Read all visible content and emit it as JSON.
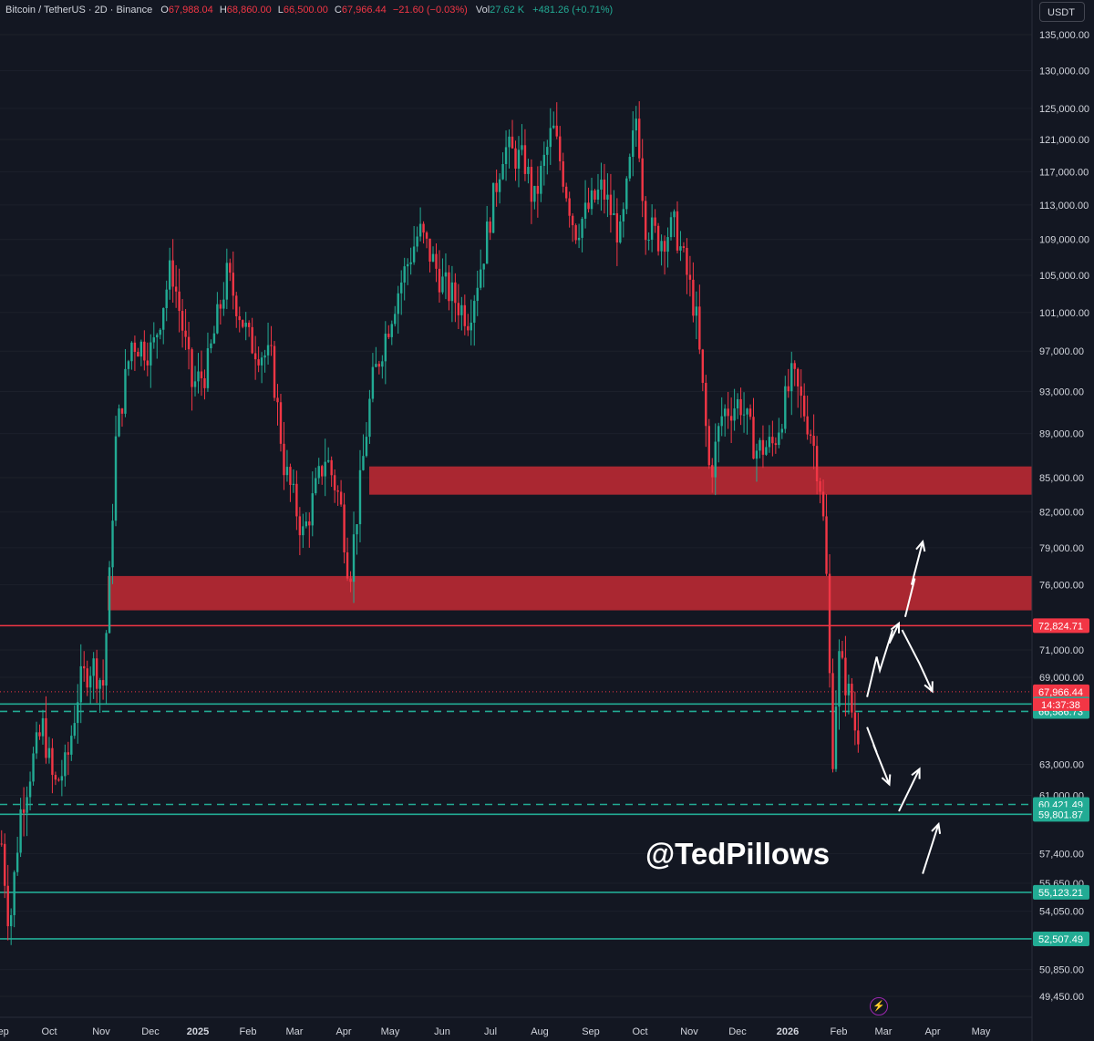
{
  "header": {
    "symbol": "Bitcoin / TetherUS · 2D · Binance",
    "o_label": "O",
    "o_value": "67,988.04",
    "h_label": "H",
    "h_value": "68,860.00",
    "l_label": "L",
    "l_value": "66,500.00",
    "c_label": "C",
    "c_value": "67,966.44",
    "change": "−21.60 (−0.03%)",
    "vol_label": "Vol",
    "vol_value": "27.62 K",
    "vol_change": "+481.26 (+0.71%)"
  },
  "currency_button": "USDT",
  "watermark": "@TedPillows",
  "bolt_icon": "lightning-icon",
  "colors": {
    "up": "#22ab94",
    "down": "#f23645",
    "zone": "#b22833",
    "resistance": "#f23645",
    "support": "#22ab94",
    "background": "#131722"
  },
  "chart_data": {
    "type": "candlestick",
    "title": "Bitcoin / TetherUS",
    "interval": "2D",
    "y_scale": "log",
    "ylim": [
      48500,
      137000
    ],
    "x_ticks": [
      "Sep",
      "Oct",
      "Nov",
      "Dec",
      "2025",
      "Feb",
      "Mar",
      "Apr",
      "May",
      "Jun",
      "Jul",
      "Aug",
      "Sep",
      "Oct",
      "Nov",
      "Dec",
      "2026",
      "Feb",
      "Mar",
      "Apr",
      "May"
    ],
    "y_ticks": [
      "135,000.00",
      "130,000.00",
      "125,000.00",
      "121,000.00",
      "117,000.00",
      "113,000.00",
      "109,000.00",
      "105,000.00",
      "101,000.00",
      "97,000.00",
      "93,000.00",
      "89,000.00",
      "85,000.00",
      "82,000.00",
      "79,000.00",
      "76,000.00",
      "71,000.00",
      "69,000.00",
      "63,000.00",
      "61,000.00",
      "57,400.00",
      "55,650.00",
      "54,050.00",
      "50,850.00",
      "49,450.00"
    ],
    "y_tick_values": [
      135000,
      130000,
      125000,
      121000,
      117000,
      113000,
      109000,
      105000,
      101000,
      97000,
      93000,
      89000,
      85000,
      82000,
      79000,
      76000,
      71000,
      69000,
      63000,
      61000,
      57400,
      55650,
      54050,
      50850,
      49450
    ],
    "price_path": [
      [
        "2024-09-01",
        58000
      ],
      [
        "2024-09-06",
        53000
      ],
      [
        "2024-09-13",
        60000
      ],
      [
        "2024-09-20",
        63000
      ],
      [
        "2024-09-27",
        65500
      ],
      [
        "2024-10-04",
        61500
      ],
      [
        "2024-10-12",
        63000
      ],
      [
        "2024-10-20",
        68500
      ],
      [
        "2024-10-28",
        70000
      ],
      [
        "2024-11-04",
        68500
      ],
      [
        "2024-11-08",
        76500
      ],
      [
        "2024-11-12",
        88500
      ],
      [
        "2024-11-22",
        98000
      ],
      [
        "2024-12-05",
        97000
      ],
      [
        "2024-12-17",
        106000
      ],
      [
        "2024-12-30",
        93500
      ],
      [
        "2025-01-08",
        95000
      ],
      [
        "2025-01-21",
        105000
      ],
      [
        "2025-02-04",
        98000
      ],
      [
        "2025-02-18",
        96000
      ],
      [
        "2025-02-26",
        86000
      ],
      [
        "2025-03-10",
        80000
      ],
      [
        "2025-03-24",
        87000
      ],
      [
        "2025-04-02",
        83000
      ],
      [
        "2025-04-08",
        76500
      ],
      [
        "2025-04-15",
        84500
      ],
      [
        "2025-04-22",
        93500
      ],
      [
        "2025-05-08",
        103000
      ],
      [
        "2025-05-22",
        110000
      ],
      [
        "2025-06-06",
        104000
      ],
      [
        "2025-06-22",
        100500
      ],
      [
        "2025-07-01",
        107000
      ],
      [
        "2025-07-14",
        120000
      ],
      [
        "2025-07-28",
        118000
      ],
      [
        "2025-08-02",
        113000
      ],
      [
        "2025-08-14",
        122500
      ],
      [
        "2025-08-28",
        110000
      ],
      [
        "2025-09-14",
        115000
      ],
      [
        "2025-09-26",
        109000
      ],
      [
        "2025-10-06",
        124500
      ],
      [
        "2025-10-11",
        111000
      ],
      [
        "2025-10-20",
        109000
      ],
      [
        "2025-10-30",
        110500
      ],
      [
        "2025-11-12",
        101000
      ],
      [
        "2025-11-21",
        85000
      ],
      [
        "2025-11-29",
        91000
      ],
      [
        "2025-12-10",
        92000
      ],
      [
        "2025-12-20",
        87500
      ],
      [
        "2025-12-31",
        88000
      ],
      [
        "2026-01-12",
        94500
      ],
      [
        "2026-01-24",
        89000
      ],
      [
        "2026-01-30",
        84000
      ],
      [
        "2026-02-02",
        78000
      ],
      [
        "2026-02-06",
        63000
      ],
      [
        "2026-02-10",
        70500
      ],
      [
        "2026-02-16",
        68000
      ],
      [
        "2026-02-22",
        64500
      ],
      [
        "2026-02-24",
        67966.44
      ]
    ],
    "last_close": 67966.44,
    "countdown": "14:37:38",
    "zones": [
      {
        "from": 83500,
        "to": 86000,
        "color": "red"
      },
      {
        "from": 74000,
        "to": 76700,
        "color": "red"
      }
    ],
    "levels": [
      {
        "value": 72824.71,
        "label": "72,824.71",
        "color": "red",
        "style": "solid"
      },
      {
        "value": 67966.44,
        "label": "67,966.44",
        "color": "red",
        "style": "dotted"
      },
      {
        "value": 67103.71,
        "label": "67,103.71",
        "color": "green",
        "style": "solid"
      },
      {
        "value": 66586.73,
        "label": "66,586.73",
        "color": "green",
        "style": "dashed"
      },
      {
        "value": 60421.49,
        "label": "60,421.49",
        "color": "green",
        "style": "dashed"
      },
      {
        "value": 59801.87,
        "label": "59,801.87",
        "color": "green",
        "style": "solid"
      },
      {
        "value": 55123.21,
        "label": "55,123.21",
        "color": "green",
        "style": "solid"
      },
      {
        "value": 52507.49,
        "label": "52,507.49",
        "color": "green",
        "style": "solid"
      }
    ],
    "projections": [
      {
        "name": "up-to-79k",
        "points": [
          [
            "2026-03-24",
            73500
          ],
          [
            "2026-03-30",
            76500
          ],
          [
            "2026-03-28",
            76000
          ],
          [
            "2026-04-04",
            79500
          ]
        ]
      },
      {
        "name": "up-to-73k",
        "points": [
          [
            "2026-02-28",
            67600
          ],
          [
            "2026-03-06",
            70500
          ],
          [
            "2026-03-08",
            69500
          ],
          [
            "2026-03-16",
            72500
          ],
          [
            "2026-03-14",
            71500
          ],
          [
            "2026-03-20",
            73000
          ]
        ]
      },
      {
        "name": "down-then-up",
        "points": [
          [
            "2026-03-22",
            72500
          ],
          [
            "2026-04-02",
            70000
          ],
          [
            "2026-04-10",
            68000
          ]
        ]
      },
      {
        "name": "down-to-62k",
        "points": [
          [
            "2026-02-28",
            65500
          ],
          [
            "2026-03-06",
            63800
          ],
          [
            "2026-03-04",
            64300
          ],
          [
            "2026-03-14",
            61700
          ]
        ]
      },
      {
        "name": "bounce-from-60k",
        "points": [
          [
            "2026-03-20",
            60000
          ],
          [
            "2026-04-02",
            62700
          ]
        ]
      },
      {
        "name": "drop-to-56k",
        "points": [
          [
            "2026-04-04",
            56200
          ],
          [
            "2026-04-14",
            59200
          ]
        ]
      }
    ]
  }
}
